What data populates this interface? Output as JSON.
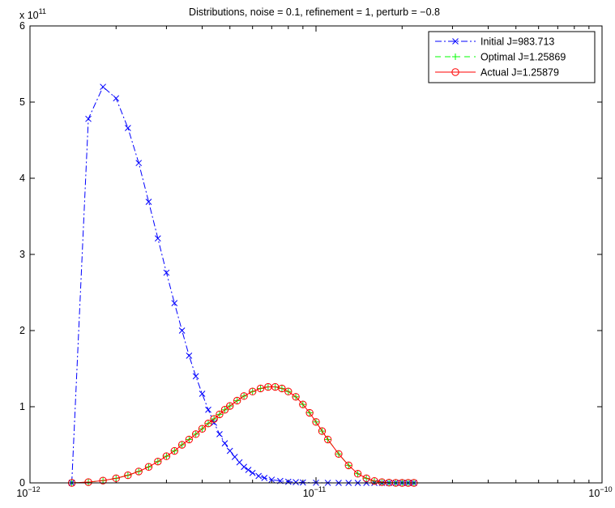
{
  "chart_data": {
    "type": "line",
    "title": "Distributions, noise = 0.1, refinement = 1, perturb = −0.8",
    "xlabel": "",
    "ylabel": "",
    "x_scale": "log",
    "xlim": [
      1e-12,
      1e-10
    ],
    "ylim": [
      0,
      600000000000
    ],
    "y_exponent_label": "x 10",
    "y_exponent_power": "11",
    "x_tick_labels": [
      {
        "base": "10",
        "exp": "−12",
        "value": 1e-12
      },
      {
        "base": "10",
        "exp": "−11",
        "value": 1e-11
      },
      {
        "base": "10",
        "exp": "−10",
        "value": 1e-10
      }
    ],
    "y_tick_labels": [
      "0",
      "1",
      "2",
      "3",
      "4",
      "5",
      "6"
    ],
    "legend": {
      "position": "top-right",
      "entries": [
        "Initial J=983.713",
        "Optimal J=1.25869",
        "Actual J=1.25879"
      ]
    },
    "grid": false,
    "series": [
      {
        "name": "Initial J=983.713",
        "color": "#0000ff",
        "line_style": "dash-dot",
        "marker": "x",
        "x": [
          1.4e-12,
          1.6e-12,
          1.8e-12,
          2e-12,
          2.2e-12,
          2.4e-12,
          2.6e-12,
          2.8e-12,
          3e-12,
          3.2e-12,
          3.4e-12,
          3.6e-12,
          3.8e-12,
          4e-12,
          4.2e-12,
          4.4e-12,
          4.6e-12,
          4.8e-12,
          5e-12,
          5.2e-12,
          5.4e-12,
          5.6e-12,
          5.8e-12,
          6e-12,
          6.3e-12,
          6.6e-12,
          7e-12,
          7.5e-12,
          8e-12,
          8.5e-12,
          9e-12,
          1e-11,
          1.1e-11,
          1.2e-11,
          1.3e-11,
          1.4e-11,
          1.5e-11,
          1.6e-11,
          1.7e-11,
          1.8e-11,
          1.9e-11,
          2e-11,
          2.1e-11,
          2.2e-11
        ],
        "y": [
          0,
          478000000000,
          520000000000,
          505000000000,
          466000000000,
          420000000000,
          369000000000,
          321000000000,
          276000000000,
          236000000000,
          200000000000,
          167000000000,
          140000000000,
          117000000000,
          96000000000,
          79000000000,
          64000000000,
          52000000000,
          42000000000,
          34000000000,
          27000000000,
          21000000000,
          17000000000,
          13000000000,
          9000000000,
          6500000000,
          4200000000,
          2500000000,
          1500000000,
          900000000,
          500000000,
          200000000,
          80000000,
          30000000,
          10000000,
          5000000,
          2000000,
          1000000,
          0,
          0,
          0,
          0,
          0,
          0
        ]
      },
      {
        "name": "Optimal J=1.25869",
        "color": "#00ff00",
        "line_style": "dashed",
        "marker": "+",
        "x": [
          1.4e-12,
          1.6e-12,
          1.8e-12,
          2e-12,
          2.2e-12,
          2.4e-12,
          2.6e-12,
          2.8e-12,
          3e-12,
          3.2e-12,
          3.4e-12,
          3.6e-12,
          3.8e-12,
          4e-12,
          4.2e-12,
          4.4e-12,
          4.6e-12,
          4.8e-12,
          5e-12,
          5.3e-12,
          5.6e-12,
          6e-12,
          6.4e-12,
          6.8e-12,
          7.2e-12,
          7.6e-12,
          8e-12,
          8.5e-12,
          9e-12,
          9.5e-12,
          1e-11,
          1.05e-11,
          1.1e-11,
          1.2e-11,
          1.3e-11,
          1.4e-11,
          1.5e-11,
          1.6e-11,
          1.7e-11,
          1.8e-11,
          1.9e-11,
          2e-11,
          2.1e-11,
          2.2e-11
        ],
        "y": [
          0,
          1000000000,
          3000000000,
          6000000000,
          10000000000,
          15000000000,
          21000000000,
          28000000000,
          35000000000,
          42000000000,
          50000000000,
          57000000000,
          64000000000,
          71000000000,
          78000000000,
          84000000000,
          90000000000,
          96000000000,
          101000000000,
          108000000000,
          114000000000,
          120000000000,
          124000000000,
          126000000000,
          126000000000,
          124000000000,
          120000000000,
          113000000000,
          103000000000,
          92000000000,
          80000000000,
          68000000000,
          57000000000,
          38000000000,
          23000000000,
          12000000000,
          6000000000,
          2500000000,
          1000000000,
          300000000,
          100000000,
          0,
          0,
          0
        ]
      },
      {
        "name": "Actual J=1.25879",
        "color": "#ff0000",
        "line_style": "solid",
        "marker": "o",
        "x": [
          1.4e-12,
          1.6e-12,
          1.8e-12,
          2e-12,
          2.2e-12,
          2.4e-12,
          2.6e-12,
          2.8e-12,
          3e-12,
          3.2e-12,
          3.4e-12,
          3.6e-12,
          3.8e-12,
          4e-12,
          4.2e-12,
          4.4e-12,
          4.6e-12,
          4.8e-12,
          5e-12,
          5.3e-12,
          5.6e-12,
          6e-12,
          6.4e-12,
          6.8e-12,
          7.2e-12,
          7.6e-12,
          8e-12,
          8.5e-12,
          9e-12,
          9.5e-12,
          1e-11,
          1.05e-11,
          1.1e-11,
          1.2e-11,
          1.3e-11,
          1.4e-11,
          1.5e-11,
          1.6e-11,
          1.7e-11,
          1.8e-11,
          1.9e-11,
          2e-11,
          2.1e-11,
          2.2e-11
        ],
        "y": [
          0,
          1000000000,
          3000000000,
          6000000000,
          10000000000,
          15000000000,
          21000000000,
          28000000000,
          35000000000,
          42000000000,
          50000000000,
          57000000000,
          64000000000,
          71000000000,
          78000000000,
          84000000000,
          90000000000,
          96000000000,
          101000000000,
          108000000000,
          114000000000,
          120000000000,
          124000000000,
          126000000000,
          126000000000,
          124000000000,
          120000000000,
          113000000000,
          103000000000,
          92000000000,
          80000000000,
          68000000000,
          57000000000,
          38000000000,
          23000000000,
          12000000000,
          6000000000,
          2500000000,
          1000000000,
          300000000,
          100000000,
          0,
          0,
          0
        ]
      }
    ]
  }
}
